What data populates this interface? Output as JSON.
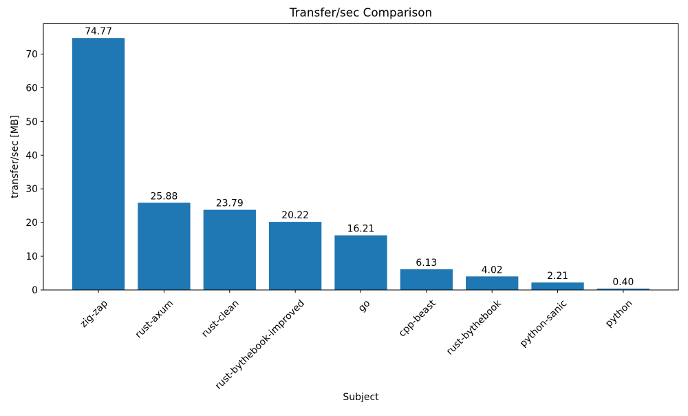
{
  "chart_data": {
    "type": "bar",
    "title": "Transfer/sec Comparison",
    "xlabel": "Subject",
    "ylabel": "transfer/sec [MB]",
    "categories": [
      "zig-zap",
      "rust-axum",
      "rust-clean",
      "rust-bythebook-improved",
      "go",
      "cpp-beast",
      "rust-bythebook",
      "python-sanic",
      "python"
    ],
    "values": [
      74.77,
      25.88,
      23.79,
      20.22,
      16.21,
      6.13,
      4.02,
      2.21,
      0.4
    ],
    "value_labels": [
      "74.77",
      "25.88",
      "23.79",
      "20.22",
      "16.21",
      "6.13",
      "4.02",
      "2.21",
      "0.40"
    ],
    "ylim": [
      0,
      79
    ],
    "yticks": [
      0,
      10,
      20,
      30,
      40,
      50,
      60,
      70
    ],
    "bar_color": "#1f77b4",
    "grid": false,
    "x_tick_rotation_deg": 45
  }
}
